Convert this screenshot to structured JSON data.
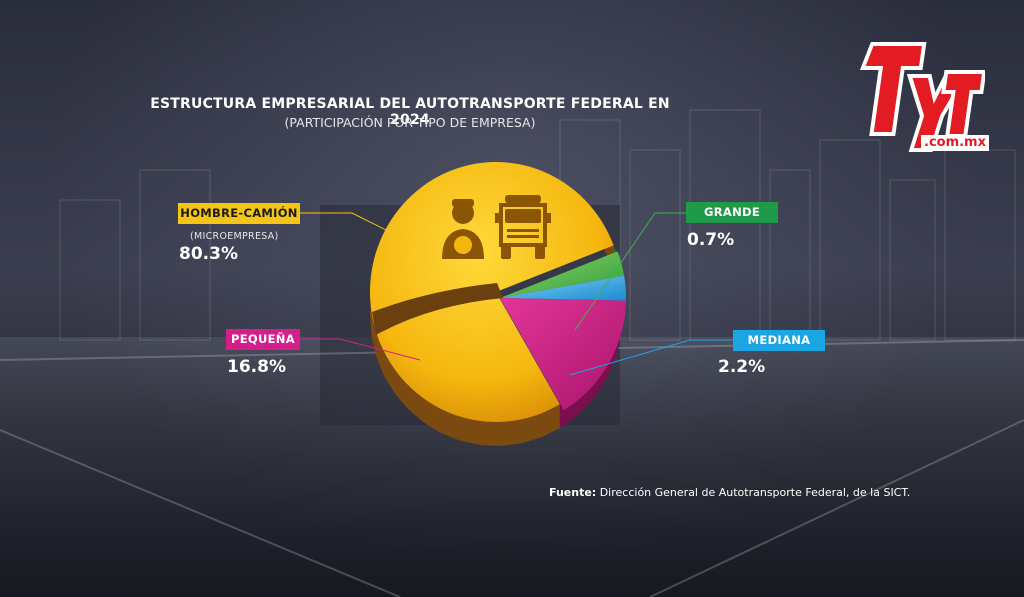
{
  "title": "ESTRUCTURA EMPRESARIAL DEL AUTOTRANSPORTE FEDERAL EN 2024",
  "subtitle": "(PARTICIPACIÓN POR TIPO DE EMPRESA)",
  "logo_text": "TyT",
  "logo_domain": ".com.mx",
  "source_label": "Fuente:",
  "source_text": " Dirección General de Autotransporte Federal, de la SICT.",
  "labels": {
    "hombre": {
      "name": "HOMBRE-CAMIÓN",
      "note": "(MICROEMPRESA)",
      "value": "80.3%",
      "color": "#f5c516",
      "text_color": "#1a1a1a"
    },
    "pequena": {
      "name": "PEQUEÑA",
      "value": "16.8%",
      "color": "#d41f8a",
      "text_color": "#ffffff"
    },
    "grande": {
      "name": "GRANDE",
      "value": "0.7%",
      "color": "#1f9a4a",
      "text_color": "#ffffff"
    },
    "mediana": {
      "name": "MEDIANA",
      "value": "2.2%",
      "color": "#1ba6e3",
      "text_color": "#ffffff"
    }
  },
  "icons": [
    "driver-icon",
    "truck-icon"
  ],
  "chart_data": {
    "type": "pie",
    "title": "ESTRUCTURA EMPRESARIAL DEL AUTOTRANSPORTE FEDERAL EN 2024",
    "subtitle": "(PARTICIPACIÓN POR TIPO DE EMPRESA)",
    "categories": [
      "HOMBRE-CAMIÓN",
      "PEQUEÑA",
      "MEDIANA",
      "GRANDE"
    ],
    "values": [
      80.3,
      16.8,
      2.2,
      0.7
    ],
    "colors": [
      "#f5c516",
      "#d41f8a",
      "#1ba6e3",
      "#3cb54a"
    ],
    "unit": "%"
  }
}
